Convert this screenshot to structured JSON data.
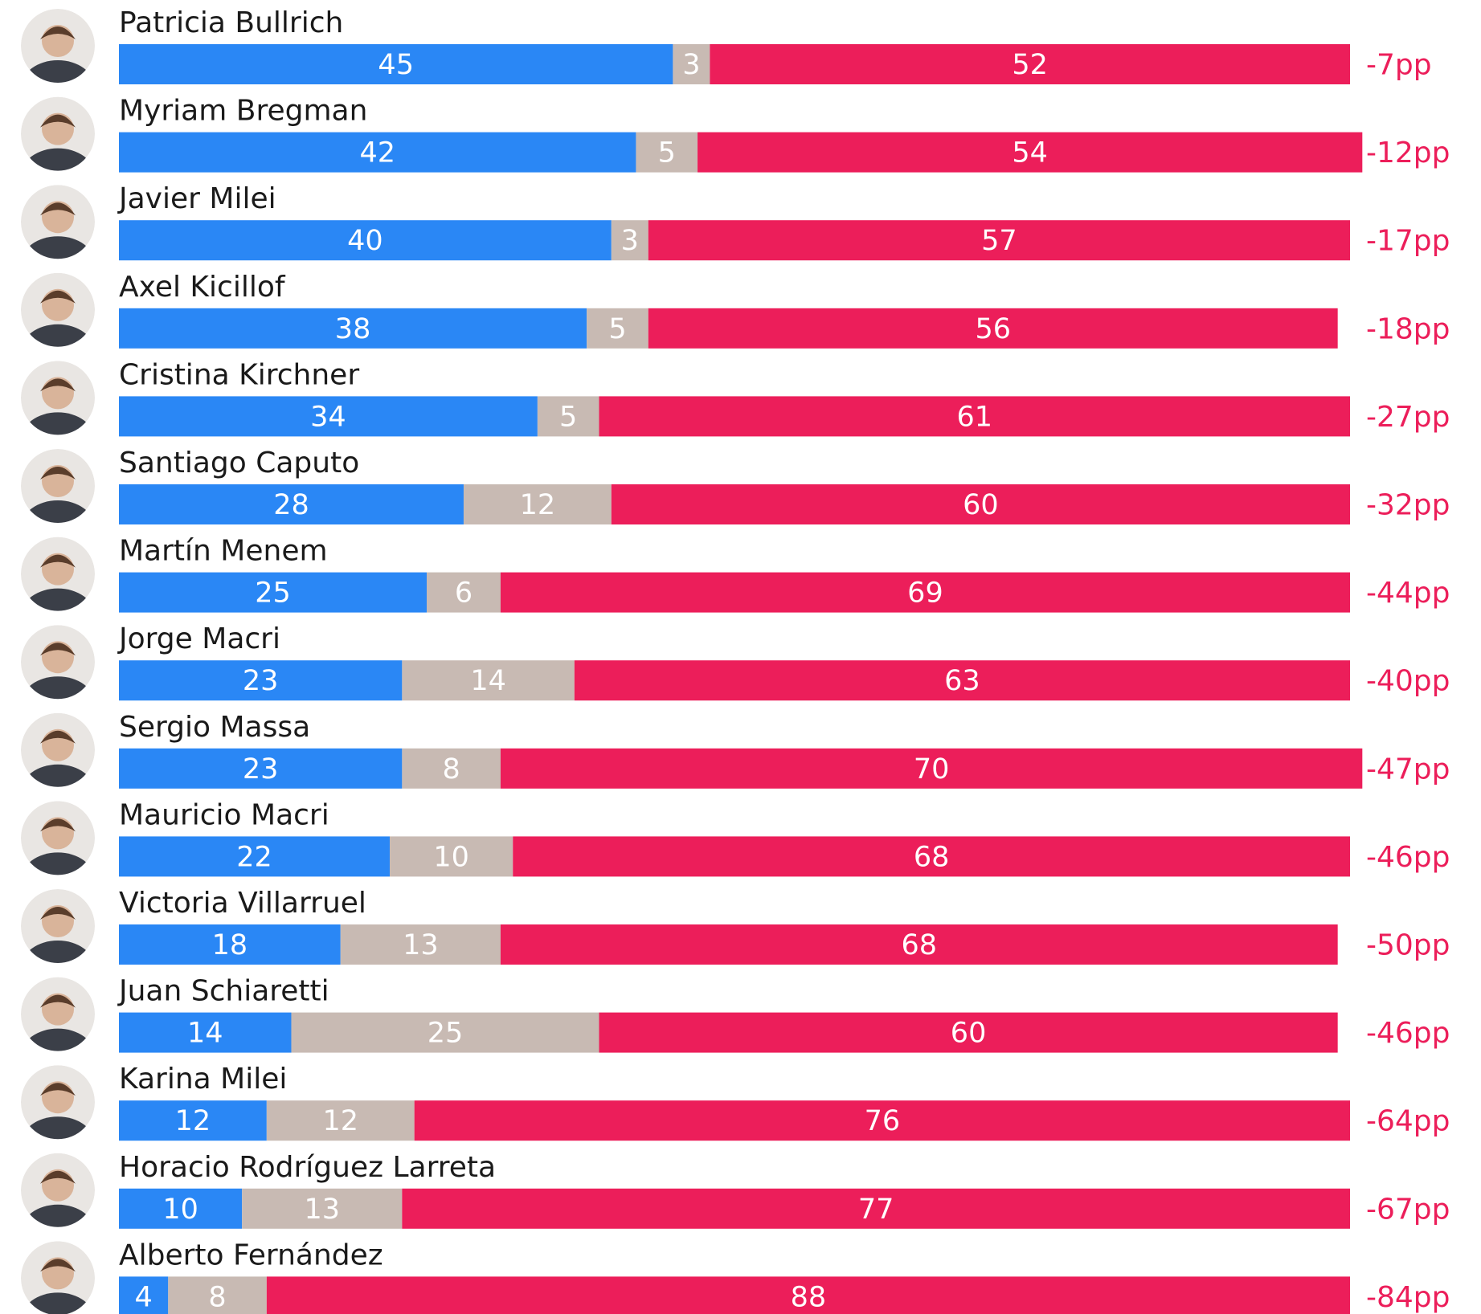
{
  "chart_data": {
    "type": "bar",
    "stacked": true,
    "orientation": "horizontal",
    "title": "",
    "xlim": [
      0,
      100
    ],
    "colors": {
      "positive": "#2a87f5",
      "neutral": "#c8bab3",
      "negative": "#ec1e5a",
      "net": "#ec1e5a"
    },
    "categories": [
      "Patricia Bullrich",
      "Myriam Bregman",
      "Javier Milei",
      "Axel Kicillof",
      "Cristina Kirchner",
      "Santiago Caputo",
      "Martín Menem",
      "Jorge Macri",
      "Sergio Massa",
      "Mauricio Macri",
      "Victoria Villarruel",
      "Juan Schiaretti",
      "Karina Milei",
      "Horacio Rodríguez Larreta",
      "Alberto Fernández"
    ],
    "series": [
      {
        "key": "positive",
        "values": [
          45,
          42,
          40,
          38,
          34,
          28,
          25,
          23,
          23,
          22,
          18,
          14,
          12,
          10,
          4
        ]
      },
      {
        "key": "neutral",
        "values": [
          3,
          5,
          3,
          5,
          5,
          12,
          6,
          14,
          8,
          10,
          13,
          25,
          12,
          13,
          8
        ]
      },
      {
        "key": "negative",
        "values": [
          52,
          54,
          57,
          56,
          61,
          60,
          69,
          63,
          70,
          68,
          68,
          60,
          76,
          77,
          88
        ]
      }
    ],
    "net_labels": [
      "-7pp",
      "-12pp",
      "-17pp",
      "-18pp",
      "-27pp",
      "-32pp",
      "-44pp",
      "-40pp",
      "-47pp",
      "-46pp",
      "-50pp",
      "-46pp",
      "-64pp",
      "-67pp",
      "-84pp"
    ]
  }
}
